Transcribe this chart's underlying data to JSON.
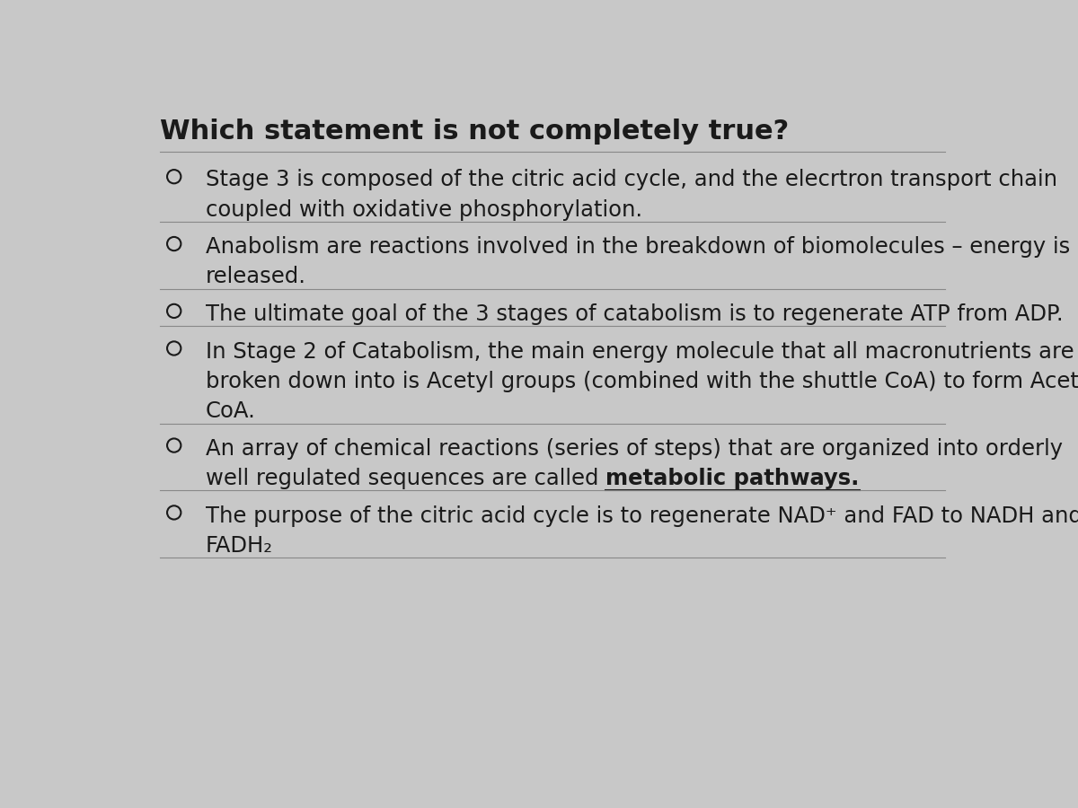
{
  "title": "Which statement is not completely true?",
  "background_color": "#c8c8c8",
  "title_color": "#1a1a1a",
  "text_color": "#1a1a1a",
  "title_fontsize": 22,
  "option_fontsize": 17.5,
  "options": [
    {
      "lines": [
        "Stage 3 is composed of the citric acid cycle, and the elecrtron transport chain",
        "coupled with oxidative phosphorylation."
      ],
      "underline_words": []
    },
    {
      "lines": [
        "Anabolism are reactions involved in the breakdown of biomolecules – energy is",
        "released."
      ],
      "underline_words": []
    },
    {
      "lines": [
        "The ultimate goal of the 3 stages of catabolism is to regenerate ATP from ADP."
      ],
      "underline_words": []
    },
    {
      "lines": [
        "In Stage 2 of Catabolism, the main energy molecule that all macronutrients are",
        "broken down into is Acetyl groups (combined with the shuttle CoA) to form Acetyl",
        "CoA."
      ],
      "underline_words": []
    },
    {
      "lines": [
        "An array of chemical reactions (series of steps) that are organized into orderly",
        "well regulated sequences are called metabolic pathways."
      ],
      "underline_phrase": "metabolic pathways.",
      "underline_line_idx": 1,
      "underline_words": [
        "metabolic pathways."
      ]
    },
    {
      "lines": [
        "The purpose of the citric acid cycle is to regenerate NAD⁺ and FAD to NADH and",
        "FADH₂"
      ],
      "underline_words": []
    }
  ]
}
